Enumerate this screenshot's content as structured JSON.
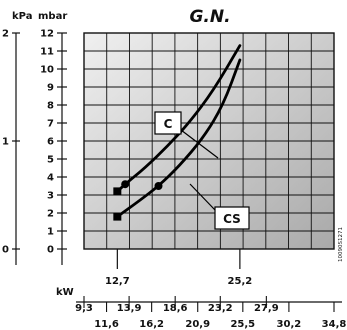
{
  "chart_data": {
    "type": "line",
    "title": "G.N.",
    "left_axis": {
      "unit": "kPa",
      "ticks": [
        {
          "label": "0",
          "mbar": 0
        },
        {
          "label": "1",
          "mbar": 10
        },
        {
          "label": "2",
          "mbar": 20
        }
      ]
    },
    "y_axis": {
      "unit": "mbar",
      "ylim": [
        0,
        12
      ],
      "ticks": [
        {
          "label": "0",
          "v": 0
        },
        {
          "label": "1",
          "v": 1
        },
        {
          "label": "2",
          "v": 2
        },
        {
          "label": "3",
          "v": 3
        },
        {
          "label": "4",
          "v": 4
        },
        {
          "label": "5",
          "v": 5
        },
        {
          "label": "6",
          "v": 6
        },
        {
          "label": "7",
          "v": 7
        },
        {
          "label": "8",
          "v": 8
        },
        {
          "label": "9",
          "v": 9
        },
        {
          "label": "10",
          "v": 10
        },
        {
          "label": "11",
          "v": 11
        },
        {
          "label": "12",
          "v": 12
        }
      ]
    },
    "x_axis": {
      "unit": "kW",
      "xlim": [
        9.3,
        34.8
      ],
      "top_ticks": [
        {
          "label": "12,7",
          "v": 12.7
        },
        {
          "label": "25,2",
          "v": 25.2
        }
      ],
      "upper_ticks": [
        {
          "label": "9,3",
          "v": 9.3
        },
        {
          "label": "13,9",
          "v": 13.9
        },
        {
          "label": "18,6",
          "v": 18.6
        },
        {
          "label": "23,2",
          "v": 23.2
        },
        {
          "label": "27,9",
          "v": 27.9
        }
      ],
      "lower_ticks": [
        {
          "label": "11,6",
          "v": 11.6
        },
        {
          "label": "16,2",
          "v": 16.2
        },
        {
          "label": "20,9",
          "v": 20.9
        },
        {
          "label": "25,5",
          "v": 25.5
        },
        {
          "label": "30,2",
          "v": 30.2
        },
        {
          "label": "34,8",
          "v": 34.8
        }
      ]
    },
    "series": [
      {
        "name": "C",
        "x": [
          12.7,
          13.5,
          15.5,
          17.8,
          20.0,
          22.5,
          25.2
        ],
        "y": [
          3.2,
          3.6,
          4.5,
          5.7,
          7.0,
          8.8,
          11.3
        ],
        "start_marker": {
          "x": 12.7,
          "y": 3.2,
          "shape": "square"
        },
        "dot": {
          "x": 13.5,
          "y": 3.6
        }
      },
      {
        "name": "CS",
        "x": [
          12.7,
          15.0,
          16.9,
          19.0,
          21.5,
          23.5,
          25.2
        ],
        "y": [
          1.8,
          2.7,
          3.5,
          4.6,
          6.2,
          8.0,
          10.5
        ],
        "start_marker": {
          "x": 12.7,
          "y": 1.8,
          "shape": "square"
        },
        "dot": {
          "x": 16.9,
          "y": 3.5
        }
      }
    ],
    "grid": true,
    "code": "10090S1271"
  },
  "colors": {
    "plot_fill_top": "#f0f0f0",
    "plot_fill_bottom": "#a9a9a9",
    "grid": "#111111",
    "curve": "#000000"
  }
}
